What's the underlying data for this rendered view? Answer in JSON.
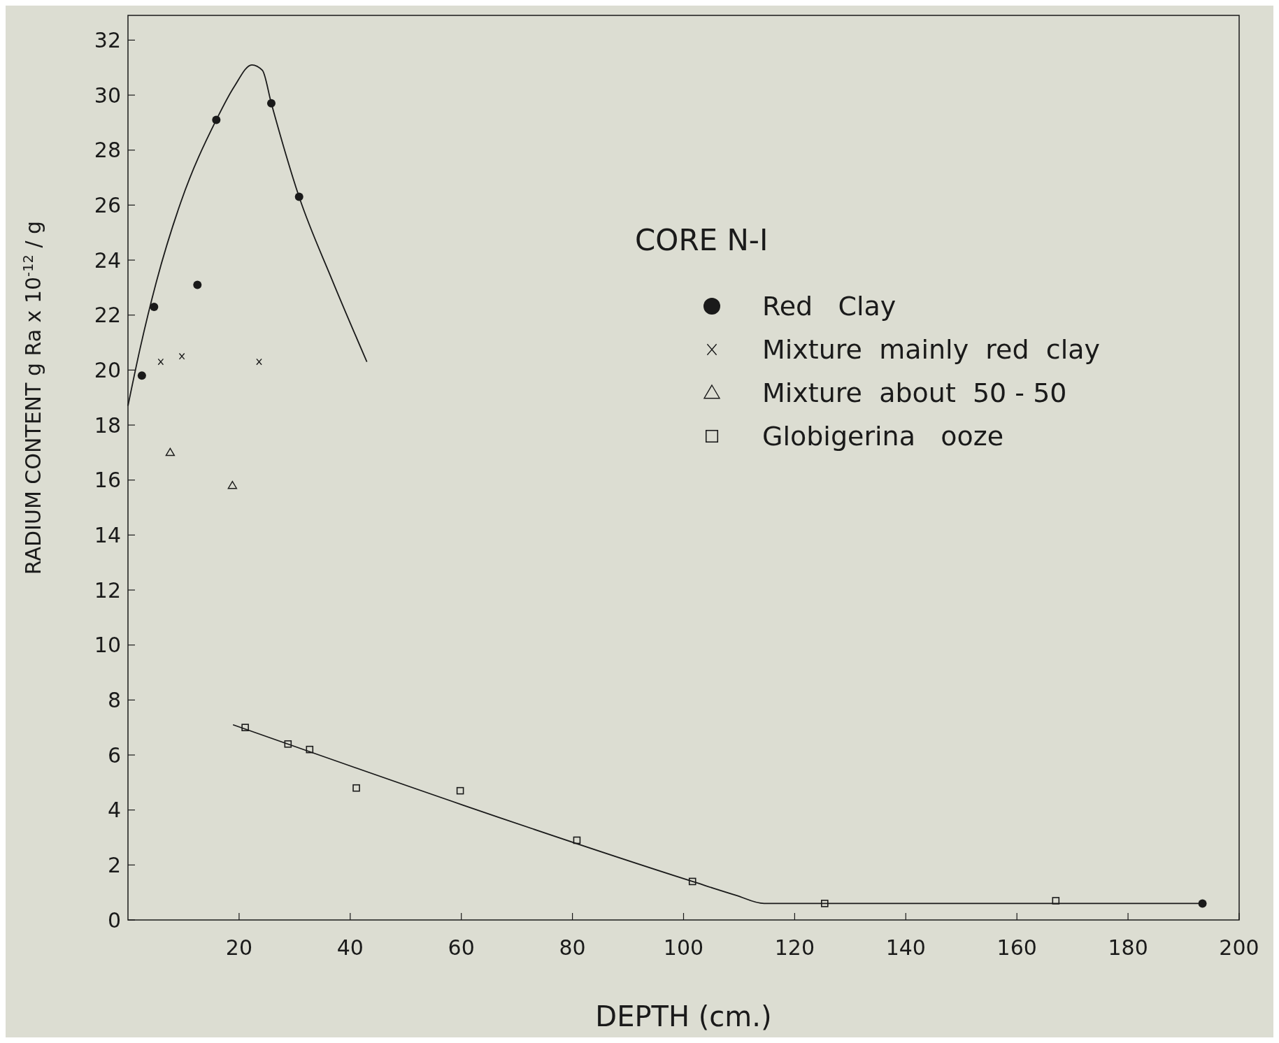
{
  "chart_data": {
    "type": "scatter",
    "xlabel": "DEPTH (cm.)",
    "ylabel": "RADIUM CONTENT   g Ra x 10$^{-12}$ / g",
    "legend_title": "CORE N-I",
    "xlim": [
      0,
      200
    ],
    "ylim": [
      0,
      32.9
    ],
    "xticks": [
      20,
      40,
      60,
      80,
      100,
      120,
      140,
      160,
      180,
      200
    ],
    "yticks": [
      0,
      2,
      4,
      6,
      8,
      10,
      12,
      14,
      16,
      18,
      20,
      22,
      24,
      26,
      28,
      30,
      32
    ],
    "grid": false,
    "legend": "right",
    "series": [
      {
        "type": "line",
        "color": "#1a1a1a",
        "marker": "none",
        "x": [
          0,
          2.2,
          5.1,
          9.5,
          15.9,
          19.1,
          22.3,
          24.2,
          25.8,
          30.8,
          36.7,
          43.0
        ],
        "values": [
          18.7,
          20.8,
          23.2,
          26.1,
          29.1,
          30.3,
          31.1,
          30.9,
          29.7,
          26.3,
          23.3,
          20.3
        ]
      },
      {
        "type": "line",
        "color": "#1a1a1a",
        "marker": "none",
        "x": [
          18.9,
          101.6,
          109.4,
          114.5,
          193.4
        ],
        "values": [
          7.1,
          1.4,
          0.9,
          0.6,
          0.6
        ]
      },
      {
        "name": "Red   Clay",
        "color": "#1a1a1a",
        "marker": "circle",
        "x": [
          2.5,
          4.7,
          12.5,
          15.9,
          25.8,
          30.8,
          193.4
        ],
        "values": [
          19.8,
          22.3,
          23.1,
          29.1,
          29.7,
          26.3,
          0.6
        ]
      },
      {
        "name": "Mixture  mainly  red  clay",
        "color": "#1a1a1a",
        "marker": "cross",
        "x": [
          5.9,
          9.7,
          23.6
        ],
        "values": [
          20.3,
          20.5,
          20.3
        ]
      },
      {
        "name": "Mixture  about  50 - 50",
        "color": "#1a1a1a",
        "marker": "triangle",
        "x": [
          7.6,
          18.8
        ],
        "values": [
          17.0,
          15.8
        ]
      },
      {
        "name": "Globigerina   ooze",
        "color": "#1a1a1a",
        "marker": "square",
        "x": [
          21.1,
          28.8,
          32.7,
          41.1,
          59.8,
          80.8,
          101.6,
          125.4,
          167.0
        ],
        "values": [
          7.0,
          6.4,
          6.2,
          4.8,
          4.7,
          2.9,
          1.4,
          0.6,
          0.7
        ]
      }
    ]
  }
}
